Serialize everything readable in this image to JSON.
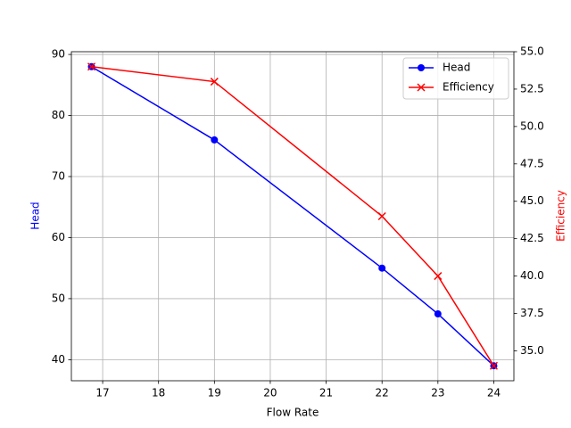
{
  "chart_data": {
    "type": "line",
    "xlabel": "Flow Rate",
    "ylabel": "Head",
    "y2label": "Efficiency",
    "x": [
      16.8,
      19,
      22,
      23,
      24
    ],
    "series": [
      {
        "name": "Head",
        "color": "#0000ff",
        "marker": "o",
        "values": [
          88,
          76,
          55,
          47.5,
          39
        ]
      },
      {
        "name": "Efficiency",
        "color": "#ff0000",
        "marker": "x",
        "axis": "y2",
        "values": [
          54,
          53,
          44,
          40,
          34
        ]
      }
    ],
    "xlim": [
      16.44,
      24.36
    ],
    "xticks": [
      17,
      18,
      19,
      20,
      21,
      22,
      23,
      24
    ],
    "ylim": [
      36.55,
      90.45
    ],
    "yticks": [
      40,
      50,
      60,
      70,
      80,
      90
    ],
    "y2lim": [
      33,
      55
    ],
    "y2ticks": [
      {
        "value": 35,
        "label": "35.0"
      },
      {
        "value": 37.5,
        "label": "37.5"
      },
      {
        "value": 40,
        "label": "40.0"
      },
      {
        "value": 42.5,
        "label": "42.5"
      },
      {
        "value": 45,
        "label": "45.0"
      },
      {
        "value": 47.5,
        "label": "47.5"
      },
      {
        "value": 50,
        "label": "50.0"
      },
      {
        "value": 52.5,
        "label": "52.5"
      },
      {
        "value": 55,
        "label": "55.0"
      }
    ],
    "grid": true,
    "legend": "upper right"
  }
}
